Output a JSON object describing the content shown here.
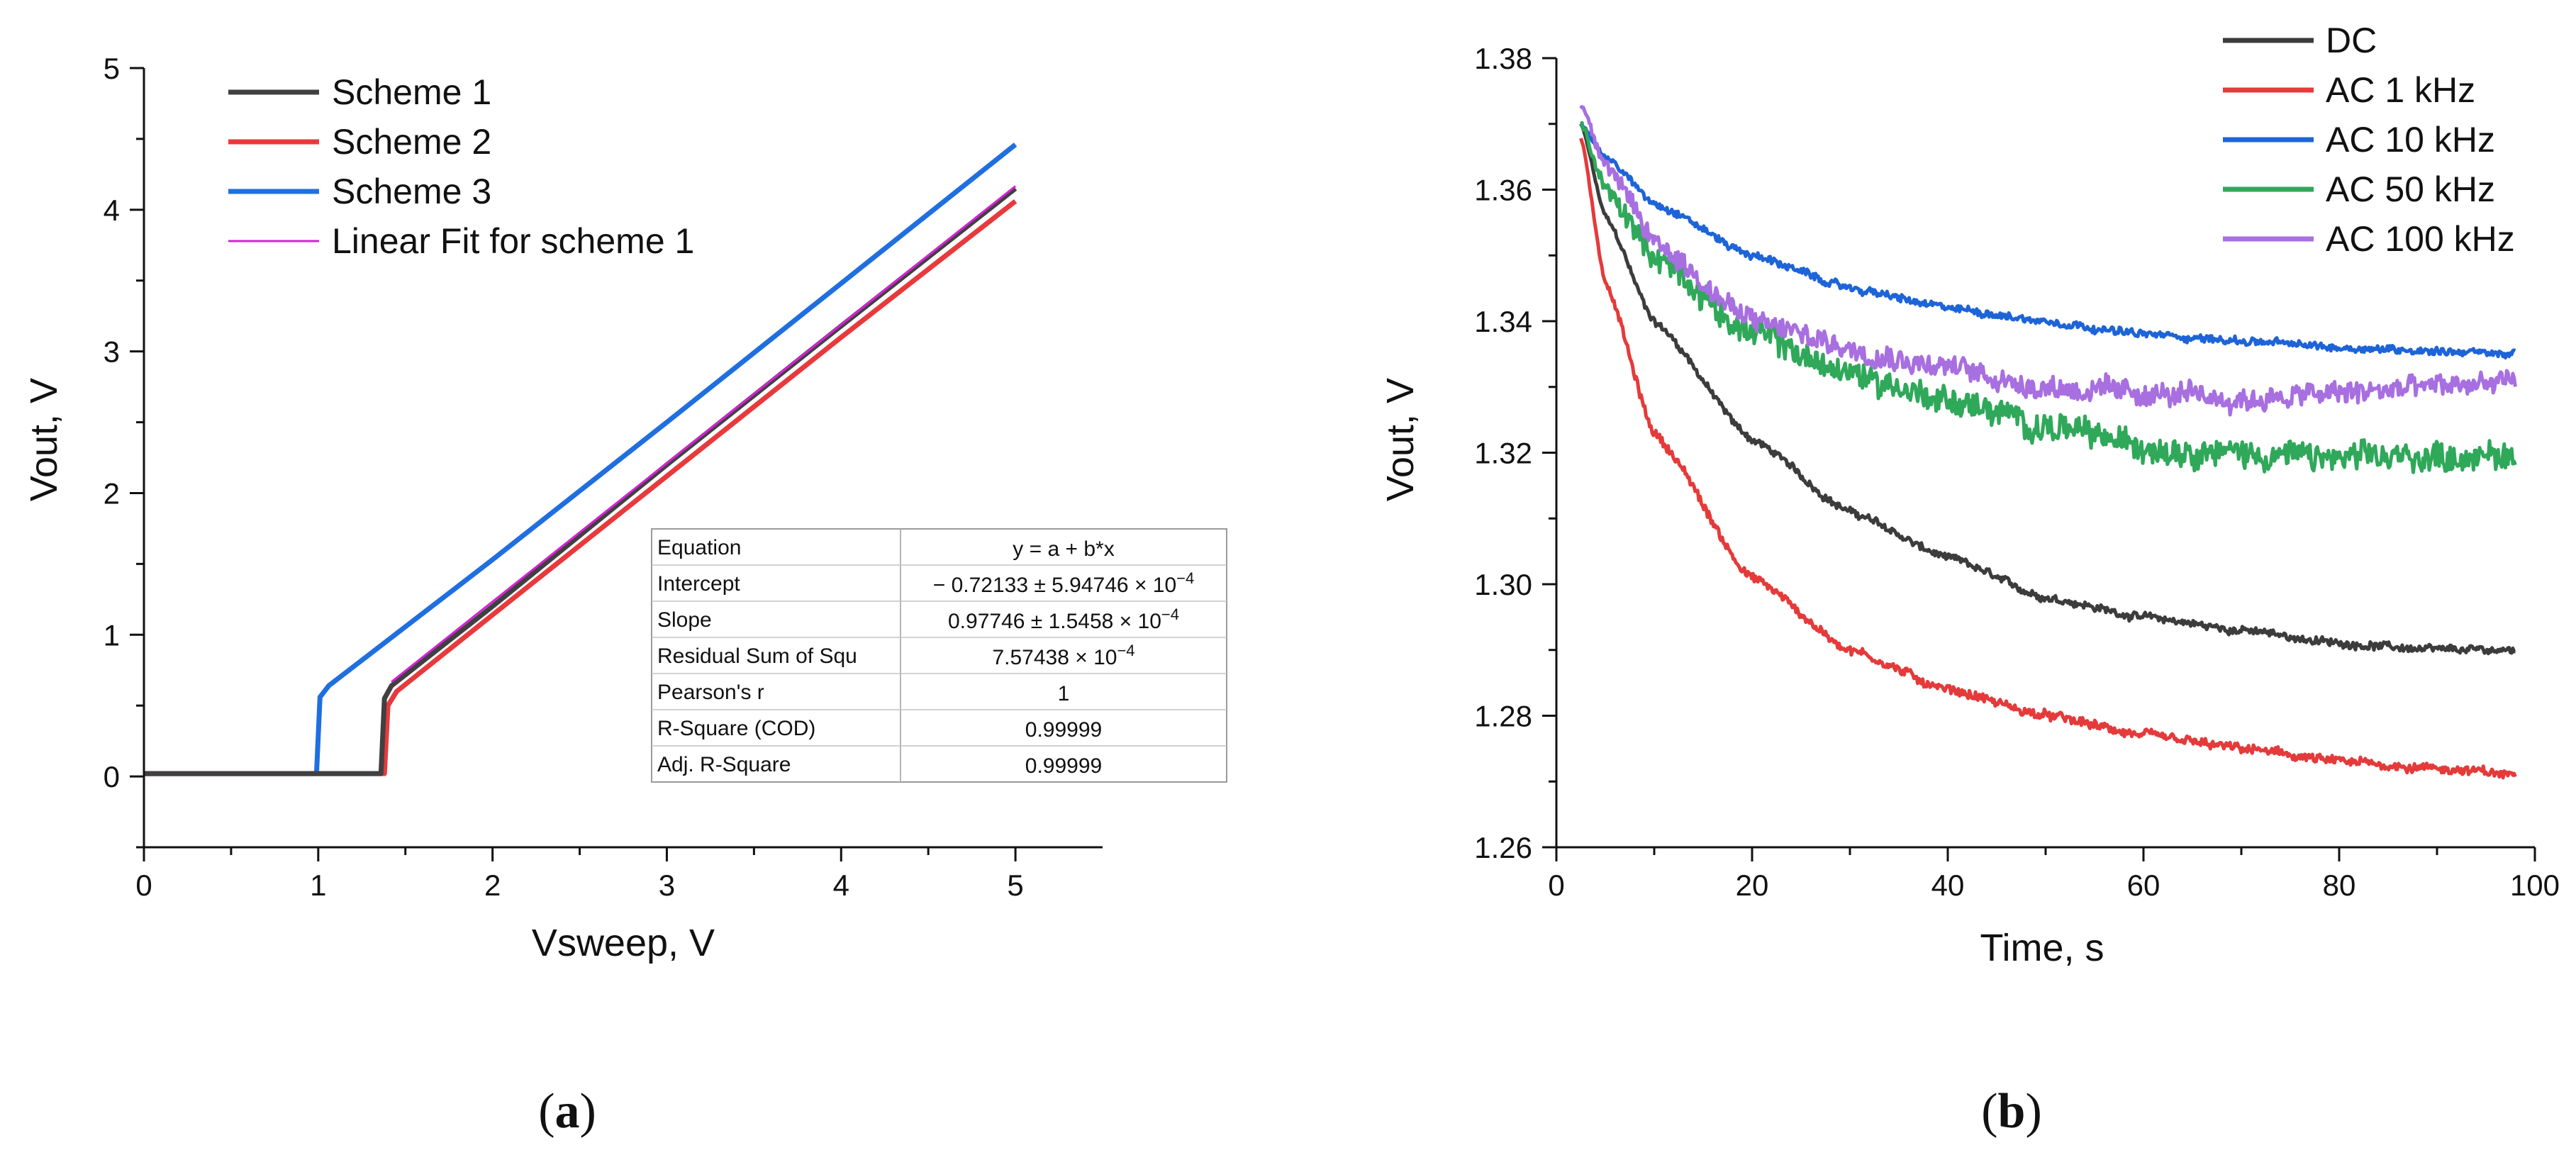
{
  "chart_data": [
    {
      "type": "line",
      "panel_label": "a",
      "xlabel": "Vsweep, V",
      "ylabel": "Vout, V",
      "xlim": [
        0,
        5.5
      ],
      "ylim": [
        -0.5,
        5
      ],
      "xticks": [
        "0",
        "1",
        "2",
        "3",
        "4",
        "5"
      ],
      "yticks": [
        "0",
        "1",
        "2",
        "3",
        "4",
        "5"
      ],
      "legend": [
        "Scheme 1",
        "Scheme 2",
        "Scheme 3",
        "Linear Fit for scheme 1"
      ],
      "series": [
        {
          "name": "Scheme 1",
          "color": "#404040",
          "threshold": 1.37,
          "x": [
            0,
            1.36,
            1.38,
            1.42,
            2,
            3,
            4,
            5
          ],
          "y": [
            0.02,
            0.02,
            0.55,
            0.64,
            1.2,
            2.2,
            3.18,
            4.15
          ]
        },
        {
          "name": "Scheme 2",
          "color": "#e8393c",
          "threshold": 1.39,
          "x": [
            0,
            1.38,
            1.4,
            1.45,
            2,
            3,
            4,
            5
          ],
          "y": [
            0.02,
            0.02,
            0.5,
            0.6,
            1.14,
            2.12,
            3.1,
            4.06
          ]
        },
        {
          "name": "Scheme 3",
          "color": "#1f6fe0",
          "threshold": 1.0,
          "x": [
            0,
            0.99,
            1.01,
            1.06,
            2,
            3,
            4,
            5
          ],
          "y": [
            0.02,
            0.02,
            0.56,
            0.64,
            1.53,
            2.5,
            3.48,
            4.46
          ]
        },
        {
          "name": "Linear Fit for scheme 1",
          "color": "#d81fd8",
          "x": [
            1.42,
            5
          ],
          "y": [
            0.667,
            4.166
          ]
        }
      ],
      "fit_table": {
        "rows": [
          {
            "label": "Equation",
            "value": "y = a + b*x"
          },
          {
            "label": "Intercept",
            "value": "− 0.72133 ± 5.94746 × 10",
            "exp": "−4"
          },
          {
            "label": "Slope",
            "value": "0.97746 ± 1.5458 × 10",
            "exp": "−4"
          },
          {
            "label": "Residual Sum of Squ",
            "value": "7.57438 × 10",
            "exp": "−4"
          },
          {
            "label": "Pearson's r",
            "value": "1"
          },
          {
            "label": "R-Square (COD)",
            "value": "0.99999"
          },
          {
            "label": "Adj. R-Square",
            "value": "0.99999"
          }
        ]
      }
    },
    {
      "type": "line",
      "panel_label": "b",
      "xlabel": "Time, s",
      "ylabel": "Vout, V",
      "xlim": [
        0,
        100
      ],
      "ylim": [
        1.26,
        1.38
      ],
      "xticks": [
        "0",
        "20",
        "40",
        "60",
        "80",
        "100"
      ],
      "yticks": [
        "1.26",
        "1.28",
        "1.30",
        "1.32",
        "1.34",
        "1.36",
        "1.38"
      ],
      "legend": [
        "DC",
        "AC 1 kHz",
        "AC 10 kHz",
        "AC 50 kHz",
        "AC 100 kHz"
      ],
      "series": [
        {
          "name": "DC",
          "color": "#3c3c3c",
          "noise": 0.0005,
          "x": [
            2.5,
            5,
            10,
            20,
            30,
            40,
            50,
            60,
            70,
            80,
            90,
            98
          ],
          "y": [
            1.37,
            1.356,
            1.34,
            1.322,
            1.311,
            1.304,
            1.298,
            1.295,
            1.293,
            1.291,
            1.29,
            1.29
          ]
        },
        {
          "name": "AC 1 kHz",
          "color": "#e53a3a",
          "noise": 0.0006,
          "x": [
            2.5,
            5,
            10,
            20,
            30,
            40,
            50,
            60,
            70,
            80,
            90,
            98
          ],
          "y": [
            1.368,
            1.346,
            1.323,
            1.301,
            1.29,
            1.284,
            1.28,
            1.277,
            1.275,
            1.273,
            1.272,
            1.271
          ]
        },
        {
          "name": "AC 10 kHz",
          "color": "#1d64d8",
          "noise": 0.0005,
          "x": [
            2.5,
            5,
            10,
            20,
            30,
            40,
            50,
            60,
            70,
            80,
            90,
            98
          ],
          "y": [
            1.37,
            1.365,
            1.358,
            1.35,
            1.345,
            1.342,
            1.34,
            1.338,
            1.337,
            1.336,
            1.3355,
            1.335
          ]
        },
        {
          "name": "AC 50 kHz",
          "color": "#2fa85a",
          "noise": 0.0018,
          "x": [
            2.5,
            5,
            10,
            20,
            30,
            40,
            50,
            60,
            70,
            80,
            90,
            98
          ],
          "y": [
            1.37,
            1.36,
            1.35,
            1.338,
            1.332,
            1.328,
            1.324,
            1.321,
            1.32,
            1.319,
            1.3195,
            1.3195
          ]
        },
        {
          "name": "AC 100 kHz",
          "color": "#a86fe0",
          "noise": 0.0015,
          "x": [
            2.5,
            5,
            10,
            20,
            30,
            40,
            50,
            60,
            70,
            80,
            90,
            98
          ],
          "y": [
            1.373,
            1.364,
            1.352,
            1.34,
            1.336,
            1.333,
            1.33,
            1.329,
            1.328,
            1.329,
            1.33,
            1.331
          ]
        }
      ]
    }
  ]
}
